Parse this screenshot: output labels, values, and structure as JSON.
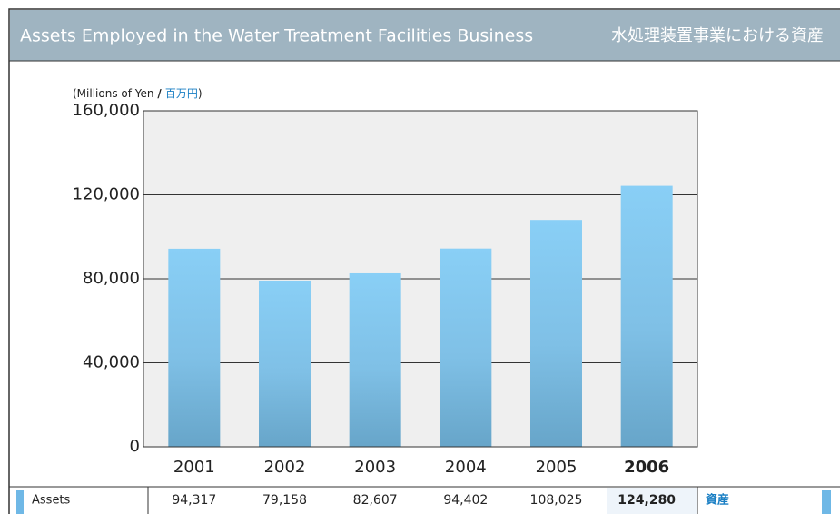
{
  "chart_data": {
    "type": "bar",
    "title": "Assets Employed in the Water Treatment Facilities Business",
    "title_jp": "水処理装置事業における資産",
    "unit": [
      "(Millions of Yen ",
      "/ ",
      "百万円",
      ")"
    ],
    "categories": [
      "2001",
      "2002",
      "2003",
      "2004",
      "2005",
      "2006"
    ],
    "series": [
      {
        "name": "Assets",
        "name_jp": "資産",
        "color": "#87cdf5",
        "values": [
          94317,
          79158,
          82607,
          94402,
          108025,
          124280
        ],
        "value_labels": [
          "94,317",
          "79,158",
          "82,607",
          "94,402",
          "108,025",
          "124,280"
        ]
      }
    ],
    "ylim": [
      0,
      160000
    ],
    "yticks": [
      0,
      {
        "value": 40000,
        "label": "40,000"
      },
      {
        "value": 80000,
        "label": "80,000"
      },
      {
        "value": 120000,
        "label": "120,000"
      },
      {
        "value": 160000,
        "label": "160,000"
      }
    ],
    "grid": true
  }
}
